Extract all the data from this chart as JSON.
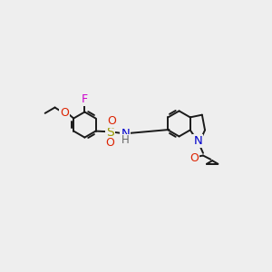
{
  "background_color": "#eeeeee",
  "bond_color": "#1a1a1a",
  "bond_width": 1.4,
  "figsize": [
    3.0,
    3.0
  ],
  "dpi": 100,
  "xlim": [
    -1.5,
    11.5
  ],
  "ylim": [
    -1.0,
    9.5
  ]
}
